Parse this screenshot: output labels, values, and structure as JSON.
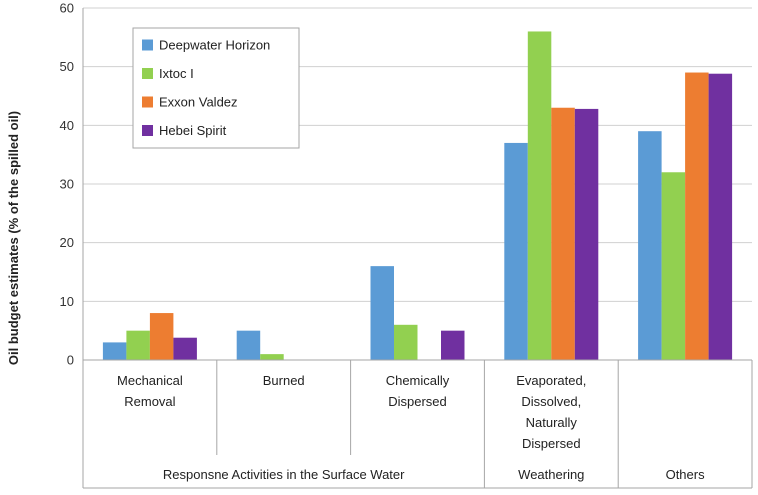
{
  "chart_data": {
    "type": "bar",
    "ylabel": "Oil budget estimates (% of the spilled oil)",
    "ylim": [
      0,
      60
    ],
    "yticks": [
      0,
      10,
      20,
      30,
      40,
      50,
      60
    ],
    "grid": true,
    "legend_position": "top-left",
    "categories": [
      [
        "Mechanical",
        "Removal"
      ],
      [
        "Burned"
      ],
      [
        "Chemically",
        "Dispersed"
      ],
      [
        "Evaporated,",
        "Dissolved,",
        "Naturally",
        "Dispersed"
      ],
      [
        ""
      ]
    ],
    "groups": [
      {
        "label": "Responsne Activities in the Surface Water",
        "span": [
          0,
          2
        ]
      },
      {
        "label": "Weathering",
        "span": [
          3,
          3
        ]
      },
      {
        "label": "Others",
        "span": [
          4,
          4
        ]
      }
    ],
    "series": [
      {
        "name": "Deepwater Horizon",
        "color": "#5b9bd5",
        "values": [
          3,
          5,
          16,
          37,
          39
        ]
      },
      {
        "name": "Ixtoc I",
        "color": "#92d050",
        "values": [
          5,
          1,
          6,
          56,
          32
        ]
      },
      {
        "name": "Exxon Valdez",
        "color": "#ed7d31",
        "values": [
          8,
          0,
          0,
          43,
          49
        ]
      },
      {
        "name": "Hebei Spirit",
        "color": "#7030a0",
        "values": [
          3.8,
          0,
          5,
          42.8,
          48.8
        ]
      }
    ]
  }
}
